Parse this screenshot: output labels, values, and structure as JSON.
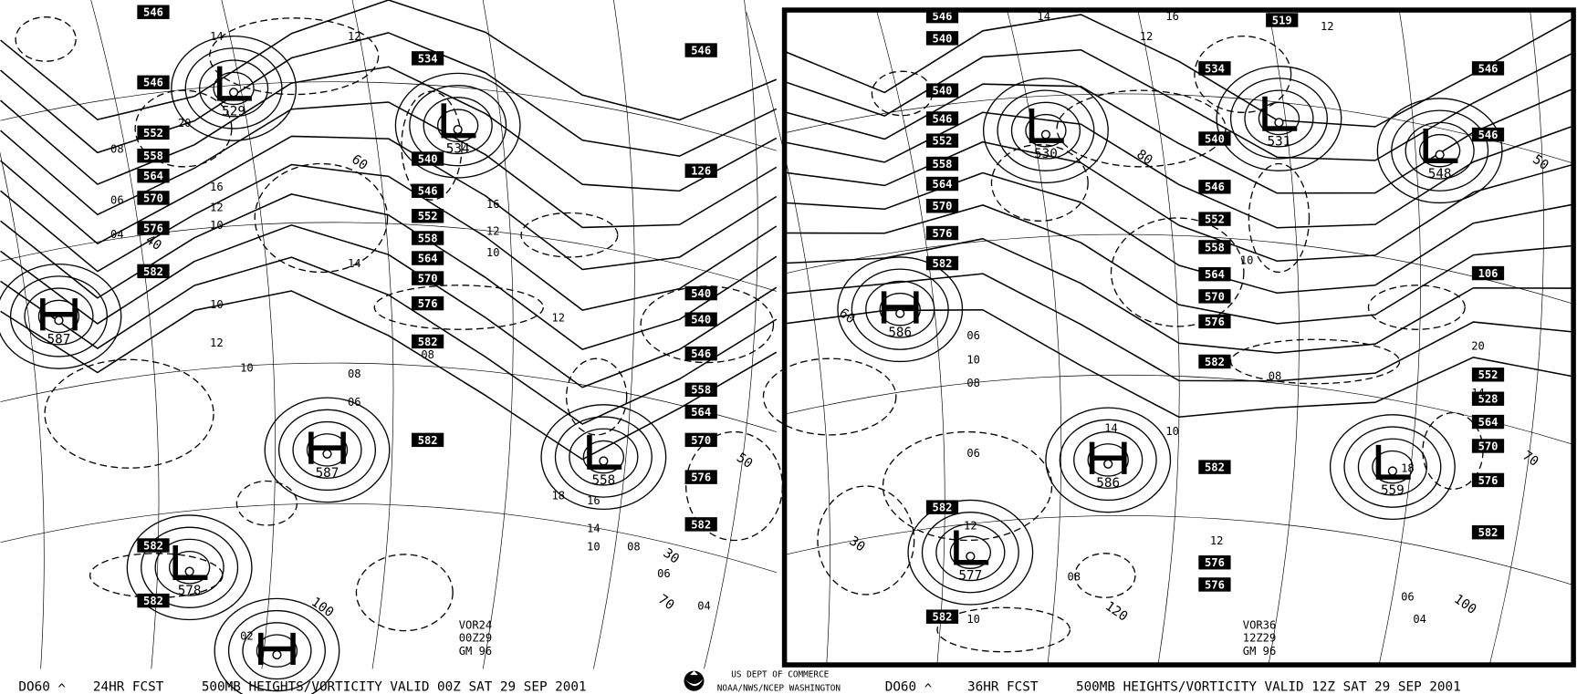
{
  "left_panel": {
    "footer": {
      "code": "DO60",
      "caret": "^",
      "forecast": "24HR FCST",
      "title": "500MB HEIGHTS/VORTICITY VALID 00Z SAT 29 SEP 2001"
    },
    "info": [
      "VOR24",
      "00Z29",
      "GM 96"
    ],
    "height_labels": [
      "546",
      "546",
      "552",
      "558",
      "564",
      "570",
      "576",
      "582",
      "534",
      "540",
      "546",
      "552",
      "558",
      "564",
      "570",
      "576",
      "582",
      "582",
      "546",
      "126",
      "540",
      "540",
      "546",
      "558",
      "564",
      "570",
      "576",
      "582",
      "582",
      "582"
    ],
    "centers": [
      {
        "type": "L",
        "value": "529"
      },
      {
        "type": "L",
        "value": "534"
      },
      {
        "type": "H",
        "value": "587"
      },
      {
        "type": "H",
        "value": "587"
      },
      {
        "type": "L",
        "value": "558"
      },
      {
        "type": "L",
        "value": "578"
      },
      {
        "type": "H",
        "value": ""
      }
    ],
    "vorticity_values": [
      "14",
      "12",
      "20",
      "16",
      "12",
      "10",
      "08",
      "06",
      "04",
      "10",
      "12",
      "10",
      "08",
      "06",
      "14",
      "16",
      "12",
      "10",
      "08",
      "18",
      "16",
      "14",
      "10",
      "12",
      "08",
      "06",
      "04",
      "02"
    ],
    "isotach_values": [
      "60",
      "40",
      "100",
      "70",
      "30",
      "50"
    ]
  },
  "right_panel": {
    "footer": {
      "code": "DO60",
      "caret": "^",
      "forecast": "36HR FCST",
      "title": "500MB HEIGHTS/VORTICITY VALID 12Z SAT 29 SEP 2001"
    },
    "info": [
      "VOR36",
      "12Z29",
      "GM 96"
    ],
    "height_labels": [
      "546",
      "540",
      "540",
      "546",
      "552",
      "558",
      "564",
      "570",
      "576",
      "582",
      "534",
      "540",
      "546",
      "552",
      "558",
      "564",
      "570",
      "576",
      "582",
      "582",
      "576",
      "576",
      "582",
      "582",
      "546",
      "546",
      "106",
      "552",
      "528",
      "564",
      "570",
      "576",
      "582",
      "519"
    ],
    "centers": [
      {
        "type": "L",
        "value": "530"
      },
      {
        "type": "L",
        "value": "531"
      },
      {
        "type": "L",
        "value": "548"
      },
      {
        "type": "H",
        "value": "586"
      },
      {
        "type": "H",
        "value": "586"
      },
      {
        "type": "L",
        "value": "559"
      },
      {
        "type": "L",
        "value": "577"
      }
    ],
    "vorticity_values": [
      "14",
      "12",
      "16",
      "12",
      "10",
      "08",
      "06",
      "20",
      "18",
      "14",
      "12",
      "10",
      "08",
      "06",
      "04",
      "12",
      "10",
      "08",
      "06",
      "14",
      "10"
    ],
    "isotach_values": [
      "60",
      "30",
      "120",
      "100",
      "70",
      "50",
      "80"
    ]
  },
  "agency": {
    "line1": "US DEPT OF COMMERCE",
    "line2": "NOAA/NWS/NCEP WASHINGTON",
    "logo": "noaa-logo"
  }
}
